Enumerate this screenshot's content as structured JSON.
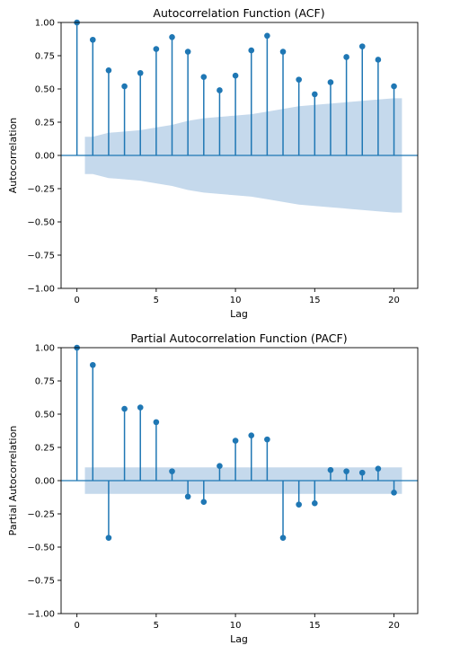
{
  "chart_data": [
    {
      "type": "stem",
      "title": "Autocorrelation Function (ACF)",
      "xlabel": "Lag",
      "ylabel": "Autocorrelation",
      "xlim": [
        -1,
        21.5
      ],
      "ylim": [
        -1.0,
        1.0
      ],
      "xticks": [
        "0",
        "5",
        "10",
        "15",
        "20"
      ],
      "yticks": [
        "−1.00",
        "−0.75",
        "−0.50",
        "−0.25",
        "0.00",
        "0.25",
        "0.50",
        "0.75",
        "1.00"
      ],
      "lags": [
        0,
        1,
        2,
        3,
        4,
        5,
        6,
        7,
        8,
        9,
        10,
        11,
        12,
        13,
        14,
        15,
        16,
        17,
        18,
        19,
        20
      ],
      "values": [
        1.0,
        0.87,
        0.64,
        0.52,
        0.62,
        0.8,
        0.89,
        0.78,
        0.59,
        0.49,
        0.6,
        0.79,
        0.9,
        0.78,
        0.57,
        0.46,
        0.55,
        0.74,
        0.82,
        0.72,
        0.52
      ],
      "confint_upper": [
        0.1,
        0.14,
        0.17,
        0.18,
        0.19,
        0.21,
        0.23,
        0.26,
        0.28,
        0.29,
        0.3,
        0.31,
        0.33,
        0.35,
        0.37,
        0.38,
        0.39,
        0.4,
        0.41,
        0.42,
        0.43
      ],
      "colors": {
        "stem": "#1f77b4",
        "band": "#c5d9ec",
        "zero_line": "#1f77b4"
      }
    },
    {
      "type": "stem",
      "title": "Partial Autocorrelation Function (PACF)",
      "xlabel": "Lag",
      "ylabel": "Partial Autocorrelation",
      "xlim": [
        -1,
        21.5
      ],
      "ylim": [
        -1.0,
        1.0
      ],
      "xticks": [
        "0",
        "5",
        "10",
        "15",
        "20"
      ],
      "yticks": [
        "−1.00",
        "−0.75",
        "−0.50",
        "−0.25",
        "0.00",
        "0.25",
        "0.50",
        "0.75",
        "1.00"
      ],
      "lags": [
        0,
        1,
        2,
        3,
        4,
        5,
        6,
        7,
        8,
        9,
        10,
        11,
        12,
        13,
        14,
        15,
        16,
        17,
        18,
        19,
        20
      ],
      "values": [
        1.0,
        0.87,
        -0.43,
        0.54,
        0.55,
        0.44,
        0.07,
        -0.12,
        -0.16,
        0.11,
        0.3,
        0.34,
        0.31,
        -0.43,
        -0.18,
        -0.17,
        0.08,
        0.07,
        0.06,
        0.09,
        -0.09
      ],
      "confint_upper": [
        0.1,
        0.1,
        0.1,
        0.1,
        0.1,
        0.1,
        0.1,
        0.1,
        0.1,
        0.1,
        0.1,
        0.1,
        0.1,
        0.1,
        0.1,
        0.1,
        0.1,
        0.1,
        0.1,
        0.1,
        0.1
      ],
      "colors": {
        "stem": "#1f77b4",
        "band": "#c5d9ec",
        "zero_line": "#1f77b4"
      }
    }
  ]
}
